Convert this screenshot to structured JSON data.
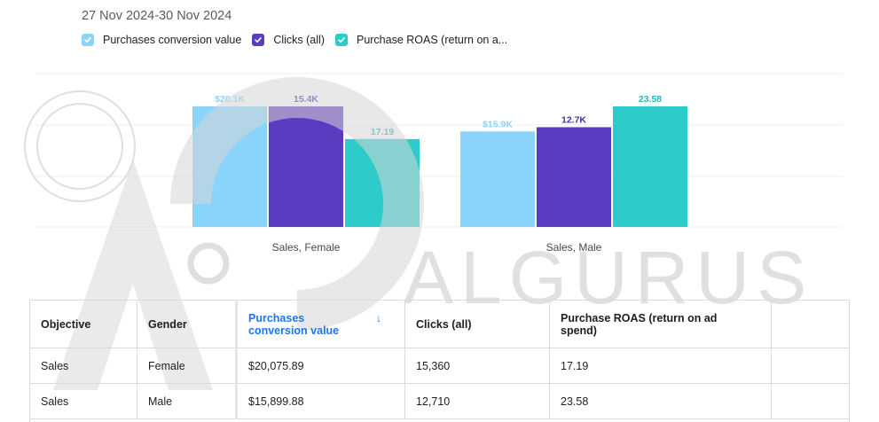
{
  "header": {
    "date_range": "27 Nov 2024-30 Nov 2024"
  },
  "legend": {
    "items": [
      {
        "label": "Purchases conversion value",
        "color": "#8ad4fb"
      },
      {
        "label": "Clicks (all)",
        "color": "#5b3bbf"
      },
      {
        "label": "Purchase ROAS (return on a...",
        "color": "#2dcbc9"
      }
    ]
  },
  "chart_data": {
    "type": "bar",
    "categories": [
      "Sales, Female",
      "Sales, Male"
    ],
    "series": [
      {
        "name": "Purchases conversion value",
        "values": [
          20075.89,
          15899.88
        ],
        "labels": [
          "$20.1K",
          "$15.9K"
        ],
        "color": "#8ad4fb",
        "label_color": "#8ad4fb"
      },
      {
        "name": "Clicks (all)",
        "values": [
          15360,
          12710
        ],
        "labels": [
          "15.4K",
          "12.7K"
        ],
        "color": "#5b3bbf",
        "label_color": "#4a2fa6"
      },
      {
        "name": "Purchase ROAS (return on a...",
        "values": [
          17.19,
          23.58
        ],
        "labels": [
          "17.19",
          "23.58"
        ],
        "color": "#2dcbc9",
        "label_color": "#1fbcbc"
      }
    ],
    "grid": true,
    "normalized_per_series": true
  },
  "watermark": {
    "text": "ALGURUS"
  },
  "table": {
    "headers": [
      "Objective",
      "Gender",
      "Purchases conversion value",
      "Clicks (all)",
      "Purchase ROAS (return on ad spend)",
      ""
    ],
    "sort_icon": "arrow-down-icon",
    "sort_arrow": "↓",
    "rows": [
      [
        "Sales",
        "Female",
        "$20,075.89",
        "15,360",
        "17.19",
        ""
      ],
      [
        "Sales",
        "Male",
        "$15,899.88",
        "12,710",
        "23.58",
        ""
      ]
    ]
  }
}
